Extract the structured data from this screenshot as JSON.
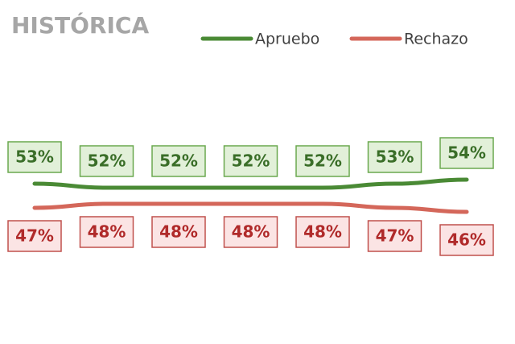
{
  "chart_data": {
    "type": "line",
    "title": "HISTÓRICA",
    "categories": [
      null,
      null,
      null,
      null,
      null,
      null,
      null
    ],
    "series": [
      {
        "name": "Apruebo",
        "color": "#4a8a35",
        "box_fill": "#e2f0d9",
        "box_stroke": "#6aa84f",
        "label_color": "#3a6e28",
        "values": [
          53,
          52,
          52,
          52,
          52,
          53,
          54
        ],
        "value_labels": [
          "53%",
          "52%",
          "52%",
          "52%",
          "52%",
          "53%",
          "54%"
        ]
      },
      {
        "name": "Rechazo",
        "color": "#d4675a",
        "box_fill": "#fbe4e4",
        "box_stroke": "#c0504d",
        "label_color": "#b02a2a",
        "values": [
          47,
          48,
          48,
          48,
          48,
          47,
          46
        ],
        "value_labels": [
          "47%",
          "48%",
          "48%",
          "48%",
          "48%",
          "47%",
          "46%"
        ]
      }
    ],
    "legend": "top-right"
  }
}
